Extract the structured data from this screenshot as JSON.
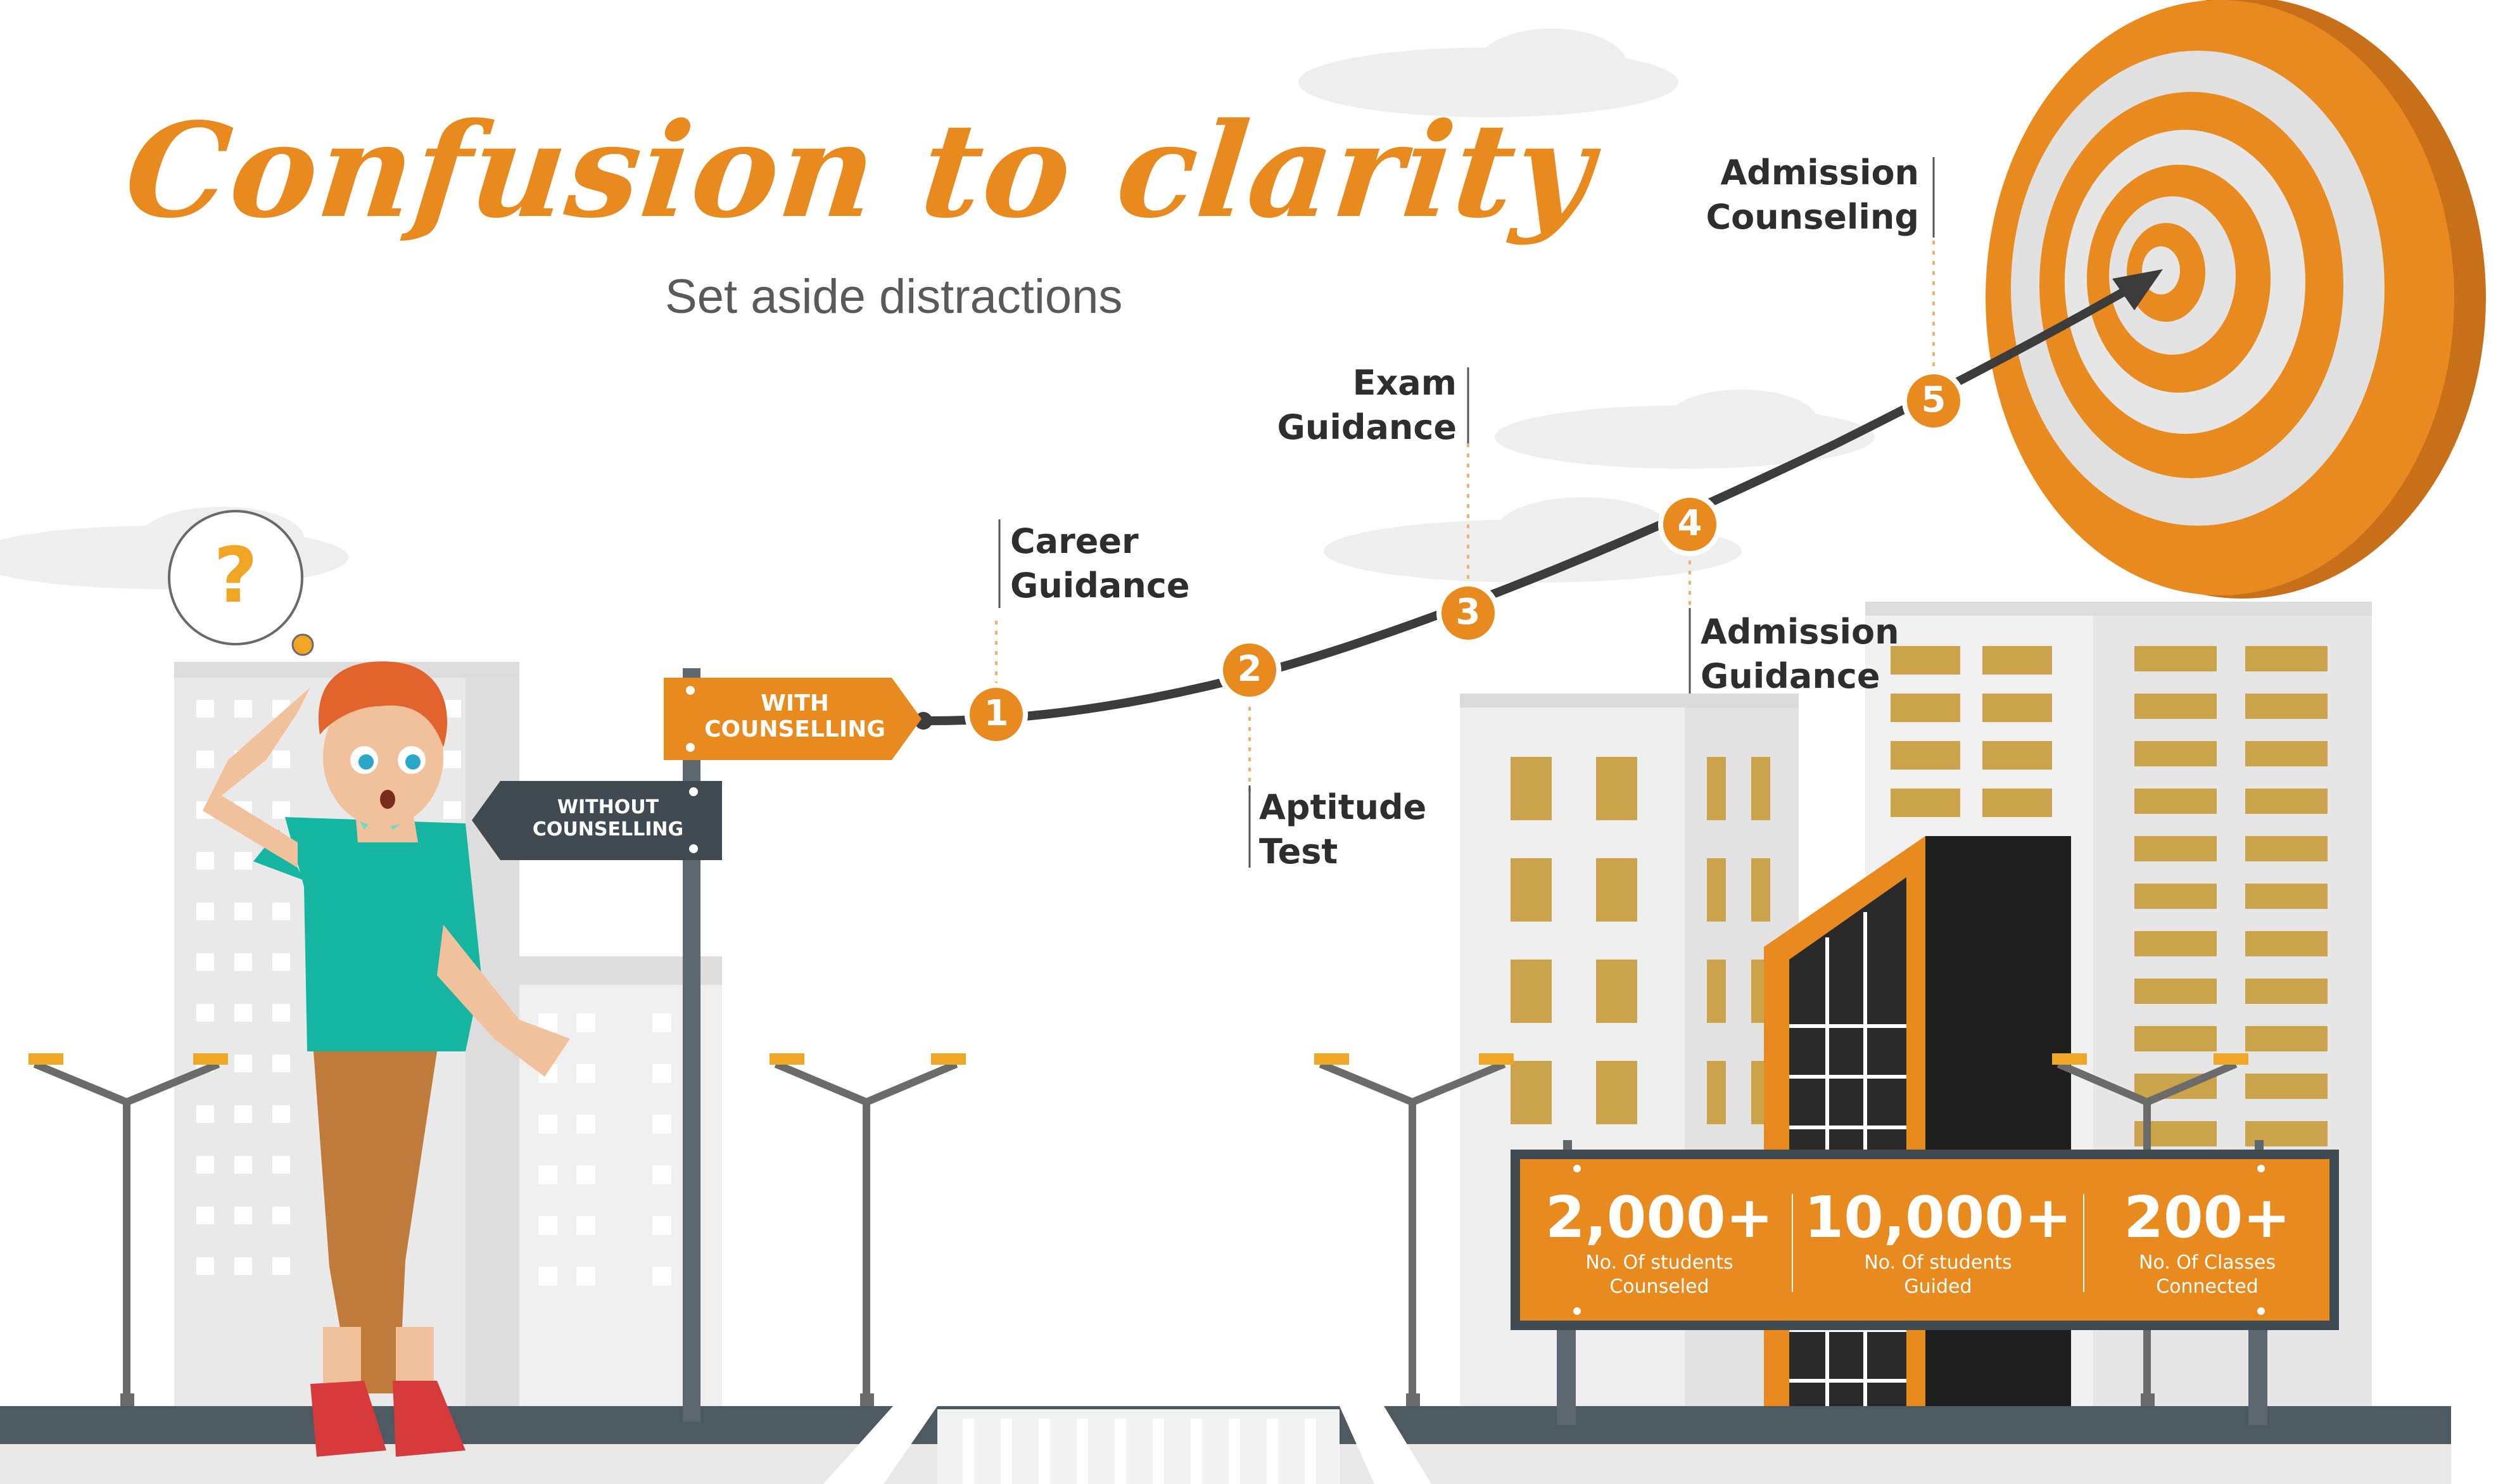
{
  "header": {
    "title": "Confusion to clarity",
    "subtitle": "Set aside distractions"
  },
  "thought_bubble": {
    "symbol": "?"
  },
  "signpost": {
    "with_label_line1": "WITH",
    "with_label_line2": "COUNSELLING",
    "without_label_line1": "WITHOUT",
    "without_label_line2": "COUNSELLING"
  },
  "steps": [
    {
      "number": "1",
      "line1": "Career",
      "line2": "Guidance"
    },
    {
      "number": "2",
      "line1": "Aptitude",
      "line2": "Test"
    },
    {
      "number": "3",
      "line1": "Exam",
      "line2": "Guidance"
    },
    {
      "number": "4",
      "line1": "Admission",
      "line2": "Guidance"
    },
    {
      "number": "5",
      "line1": "Admission",
      "line2": "Counseling"
    }
  ],
  "billboard": {
    "stats": [
      {
        "value": "2,000+",
        "caption_line1": "No. Of students",
        "caption_line2": "Counseled"
      },
      {
        "value": "10,000+",
        "caption_line1": "No. Of students",
        "caption_line2": "Guided"
      },
      {
        "value": "200+",
        "caption_line1": "No. Of Classes",
        "caption_line2": "Connected"
      }
    ]
  },
  "colors": {
    "accent": "#e88a1e",
    "dark": "#3f4a52",
    "building_window": "#caa34a",
    "text": "#2e2e2e"
  }
}
